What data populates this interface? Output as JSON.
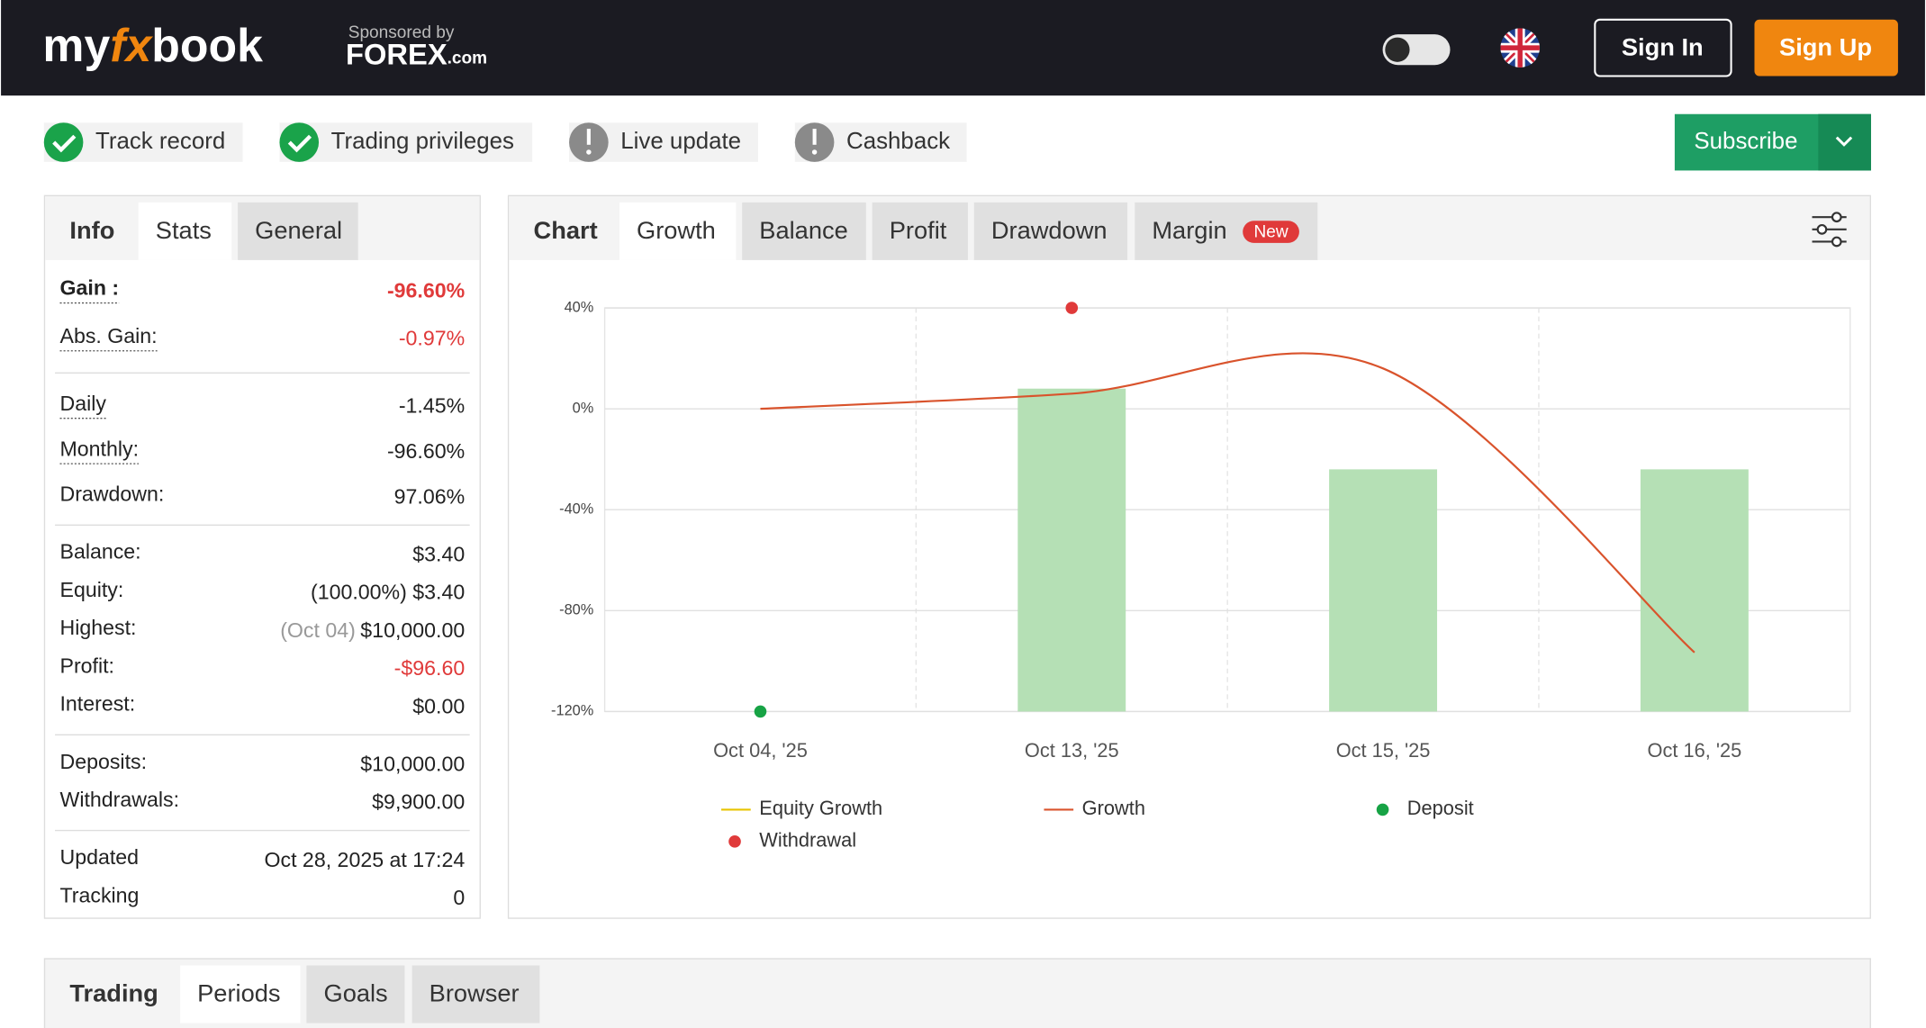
{
  "header": {
    "logo": [
      "my",
      "fx",
      "book"
    ],
    "sponsor_line": "Sponsored by",
    "sponsor_name": "FOREX",
    "sponsor_tld": ".com",
    "sign_in": "Sign In",
    "sign_up": "Sign Up"
  },
  "badges": [
    {
      "label": "Track record",
      "ok": true
    },
    {
      "label": "Trading privileges",
      "ok": true
    },
    {
      "label": "Live update",
      "ok": false
    },
    {
      "label": "Cashback",
      "ok": false
    }
  ],
  "subscribe": "Subscribe",
  "stats_panel": {
    "tabs": [
      "Info",
      "Stats",
      "General"
    ],
    "rows": [
      {
        "label": "Gain :",
        "value": "-96.60%"
      },
      {
        "label": "Abs. Gain:",
        "value": "-0.97%"
      },
      {
        "label": "Daily",
        "value": "-1.45%"
      },
      {
        "label": "Monthly:",
        "value": "-96.60%"
      },
      {
        "label": "Drawdown:",
        "value": "97.06%"
      },
      {
        "label": "Balance:",
        "value": "$3.40"
      },
      {
        "label": "Equity:",
        "value": "(100.00%) $3.40"
      },
      {
        "label": "Highest:",
        "value": "$10,000.00",
        "note": "(Oct 04)"
      },
      {
        "label": "Profit:",
        "value": "-$96.60"
      },
      {
        "label": "Interest:",
        "value": "$0.00"
      },
      {
        "label": "Deposits:",
        "value": "$10,000.00"
      },
      {
        "label": "Withdrawals:",
        "value": "$9,900.00"
      },
      {
        "label": "Updated",
        "value": "Oct 28, 2025 at 17:24"
      },
      {
        "label": "Tracking",
        "value": "0"
      }
    ]
  },
  "chart_tabs": {
    "tabs": [
      "Chart",
      "Growth",
      "Balance",
      "Profit",
      "Drawdown",
      "Margin"
    ],
    "new_badge": "New"
  },
  "chart_data": {
    "type": "line",
    "categories": [
      "Oct 04, '25",
      "Oct 13, '25",
      "Oct 15, '25",
      "Oct 16, '25"
    ],
    "ylim": [
      -120,
      40
    ],
    "yticks": [
      {
        "value": 40,
        "label": "40%"
      },
      {
        "value": 0,
        "label": "0%"
      },
      {
        "value": -40,
        "label": "-40%"
      },
      {
        "value": -80,
        "label": "-80%"
      },
      {
        "value": -120,
        "label": "-120%"
      }
    ],
    "grid": true,
    "bars": {
      "color": "#b5e0b5",
      "values": [
        null,
        8,
        -24,
        -24
      ]
    },
    "series": [
      {
        "name": "Equity Growth",
        "color": "#e8c400",
        "kind": "line",
        "values": [
          null,
          null,
          null,
          null
        ]
      },
      {
        "name": "Growth",
        "color": "#d9532c",
        "kind": "line",
        "values": [
          0,
          6,
          16,
          -96.6
        ]
      },
      {
        "name": "Deposit",
        "color": "#17a345",
        "kind": "dot",
        "values": [
          -120,
          null,
          null,
          null
        ]
      },
      {
        "name": "Withdrawal",
        "color": "#e03a3a",
        "kind": "dot",
        "values": [
          null,
          40,
          null,
          null
        ]
      }
    ]
  },
  "bottom_tabs": [
    "Trading",
    "Periods",
    "Goals",
    "Browser"
  ]
}
